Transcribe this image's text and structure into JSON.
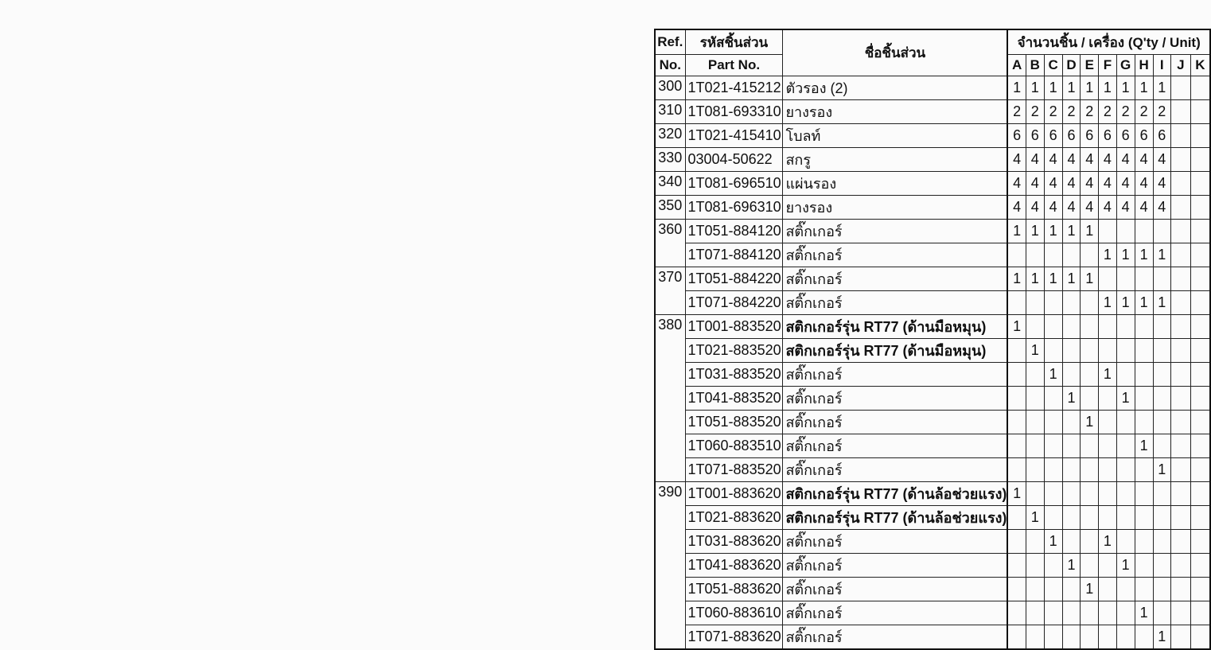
{
  "header": {
    "ref_line1": "Ref.",
    "ref_line2": "No.",
    "part_line1": "รหัสชิ้นส่วน",
    "part_line2": "Part No.",
    "name": "ชื่อชิ้นส่วน",
    "qty": "จำนวนชิ้น / เครื่อง (Q'ty / Unit)",
    "columns": [
      "A",
      "B",
      "C",
      "D",
      "E",
      "F",
      "G",
      "H",
      "I",
      "J",
      "K"
    ]
  },
  "rows": [
    {
      "ref": "300",
      "part": "1T021-415212",
      "name": "ตัวรอง (2)",
      "qty": [
        "1",
        "1",
        "1",
        "1",
        "1",
        "1",
        "1",
        "1",
        "1",
        "",
        ""
      ]
    },
    {
      "ref": "310",
      "part": "1T081-693310",
      "name": "ยางรอง",
      "qty": [
        "2",
        "2",
        "2",
        "2",
        "2",
        "2",
        "2",
        "2",
        "2",
        "",
        ""
      ]
    },
    {
      "ref": "320",
      "part": "1T021-415410",
      "name": "โบลท์",
      "qty": [
        "6",
        "6",
        "6",
        "6",
        "6",
        "6",
        "6",
        "6",
        "6",
        "",
        ""
      ]
    },
    {
      "ref": "330",
      "part": "03004-50622",
      "name": "สกรู",
      "qty": [
        "4",
        "4",
        "4",
        "4",
        "4",
        "4",
        "4",
        "4",
        "4",
        "",
        ""
      ]
    },
    {
      "ref": "340",
      "part": "1T081-696510",
      "name": "แผ่นรอง",
      "qty": [
        "4",
        "4",
        "4",
        "4",
        "4",
        "4",
        "4",
        "4",
        "4",
        "",
        ""
      ]
    },
    {
      "ref": "350",
      "part": "1T081-696310",
      "name": "ยางรอง",
      "qty": [
        "4",
        "4",
        "4",
        "4",
        "4",
        "4",
        "4",
        "4",
        "4",
        "",
        ""
      ]
    },
    {
      "ref": "360",
      "span": 2,
      "part": "1T051-884120",
      "name": "สติ๊กเกอร์",
      "qty": [
        "1",
        "1",
        "1",
        "1",
        "1",
        "",
        "",
        "",
        "",
        "",
        ""
      ]
    },
    {
      "part": "1T071-884120",
      "name": "สติ๊กเกอร์",
      "qty": [
        "",
        "",
        "",
        "",
        "",
        "1",
        "1",
        "1",
        "1",
        "",
        ""
      ]
    },
    {
      "ref": "370",
      "span": 2,
      "part": "1T051-884220",
      "name": "สติ๊กเกอร์",
      "qty": [
        "1",
        "1",
        "1",
        "1",
        "1",
        "",
        "",
        "",
        "",
        "",
        ""
      ]
    },
    {
      "part": "1T071-884220",
      "name": "สติ๊กเกอร์",
      "qty": [
        "",
        "",
        "",
        "",
        "",
        "1",
        "1",
        "1",
        "1",
        "",
        ""
      ]
    },
    {
      "ref": "380",
      "span": 7,
      "part": "1T001-883520",
      "name": "สติกเกอร์รุ่น RT77 (ด้านมือหมุน)",
      "qty": [
        "1",
        "",
        "",
        "",
        "",
        "",
        "",
        "",
        "",
        "",
        ""
      ]
    },
    {
      "part": "1T021-883520",
      "name": "สติกเกอร์รุ่น RT77 (ด้านมือหมุน)",
      "qty": [
        "",
        "1",
        "",
        "",
        "",
        "",
        "",
        "",
        "",
        "",
        ""
      ]
    },
    {
      "part": "1T031-883520",
      "name": "สติ๊กเกอร์",
      "qty": [
        "",
        "",
        "1",
        "",
        "",
        "1",
        "",
        "",
        "",
        "",
        ""
      ]
    },
    {
      "part": "1T041-883520",
      "name": "สติ๊กเกอร์",
      "qty": [
        "",
        "",
        "",
        "1",
        "",
        "",
        "1",
        "",
        "",
        "",
        ""
      ]
    },
    {
      "part": "1T051-883520",
      "name": "สติ๊กเกอร์",
      "qty": [
        "",
        "",
        "",
        "",
        "1",
        "",
        "",
        "",
        "",
        "",
        ""
      ]
    },
    {
      "part": "1T060-883510",
      "name": "สติ๊กเกอร์",
      "qty": [
        "",
        "",
        "",
        "",
        "",
        "",
        "",
        "1",
        "",
        "",
        ""
      ]
    },
    {
      "part": "1T071-883520",
      "name": "สติ๊กเกอร์",
      "qty": [
        "",
        "",
        "",
        "",
        "",
        "",
        "",
        "",
        "1",
        "",
        ""
      ]
    },
    {
      "ref": "390",
      "span": 7,
      "part": "1T001-883620",
      "name": "สติกเกอร์รุ่น RT77 (ด้านล้อช่วยแรง)",
      "qty": [
        "1",
        "",
        "",
        "",
        "",
        "",
        "",
        "",
        "",
        "",
        ""
      ]
    },
    {
      "part": "1T021-883620",
      "name": "สติกเกอร์รุ่น RT77 (ด้านล้อช่วยแรง)",
      "qty": [
        "",
        "1",
        "",
        "",
        "",
        "",
        "",
        "",
        "",
        "",
        ""
      ]
    },
    {
      "part": "1T031-883620",
      "name": "สติ๊กเกอร์",
      "qty": [
        "",
        "",
        "1",
        "",
        "",
        "1",
        "",
        "",
        "",
        "",
        ""
      ]
    },
    {
      "part": "1T041-883620",
      "name": "สติ๊กเกอร์",
      "qty": [
        "",
        "",
        "",
        "1",
        "",
        "",
        "1",
        "",
        "",
        "",
        ""
      ]
    },
    {
      "part": "1T051-883620",
      "name": "สติ๊กเกอร์",
      "qty": [
        "",
        "",
        "",
        "",
        "1",
        "",
        "",
        "",
        "",
        "",
        ""
      ]
    },
    {
      "part": "1T060-883610",
      "name": "สติ๊กเกอร์",
      "qty": [
        "",
        "",
        "",
        "",
        "",
        "",
        "",
        "1",
        "",
        "",
        ""
      ]
    },
    {
      "part": "1T071-883620",
      "name": "สติ๊กเกอร์",
      "qty": [
        "",
        "",
        "",
        "",
        "",
        "",
        "",
        "",
        "1",
        "",
        ""
      ]
    }
  ]
}
